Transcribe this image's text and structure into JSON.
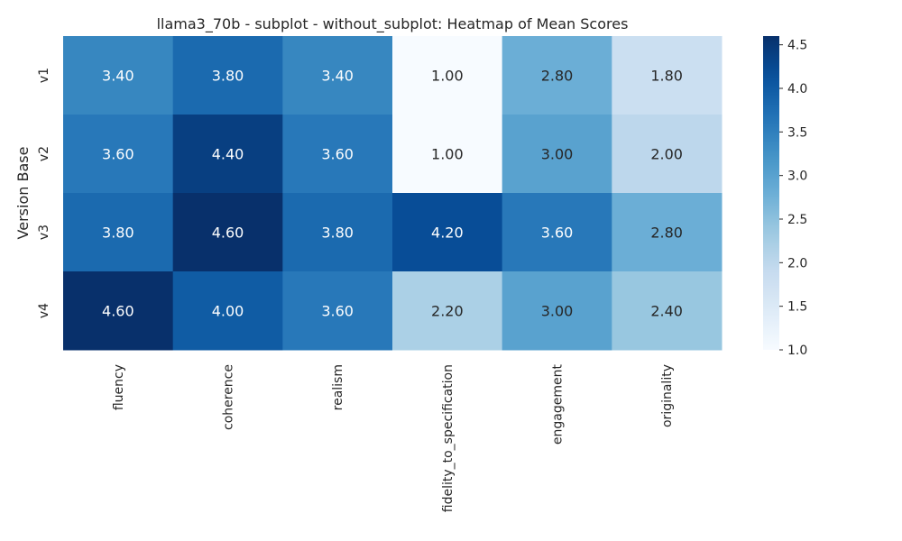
{
  "chart_data": {
    "type": "heatmap",
    "title": "llama3_70b - subplot - without_subplot: Heatmap of Mean Scores",
    "xlabel": "",
    "ylabel": "Version Base",
    "x_categories": [
      "fluency",
      "coherence",
      "realism",
      "fidelity_to_specification",
      "engagement",
      "originality"
    ],
    "y_categories": [
      "v1",
      "v2",
      "v3",
      "v4"
    ],
    "values": [
      [
        3.4,
        3.8,
        3.4,
        1.0,
        2.8,
        1.8
      ],
      [
        3.6,
        4.4,
        3.6,
        1.0,
        3.0,
        2.0
      ],
      [
        3.8,
        4.6,
        3.8,
        4.2,
        3.6,
        2.8
      ],
      [
        4.6,
        4.0,
        3.6,
        2.2,
        3.0,
        2.4
      ]
    ],
    "value_labels": [
      [
        "3.40",
        "3.80",
        "3.40",
        "1.00",
        "2.80",
        "1.80"
      ],
      [
        "3.60",
        "4.40",
        "3.60",
        "1.00",
        "3.00",
        "2.00"
      ],
      [
        "3.80",
        "4.60",
        "3.80",
        "4.20",
        "3.60",
        "2.80"
      ],
      [
        "4.60",
        "4.00",
        "3.60",
        "2.20",
        "3.00",
        "2.40"
      ]
    ],
    "colormap": "Blues",
    "colorbar": {
      "range": [
        1.0,
        4.6
      ],
      "ticks": [
        1.0,
        1.5,
        2.0,
        2.5,
        3.0,
        3.5,
        4.0,
        4.5
      ],
      "tick_labels": [
        "1.0",
        "1.5",
        "2.0",
        "2.5",
        "3.0",
        "3.5",
        "4.0",
        "4.5"
      ]
    },
    "grid": false
  }
}
